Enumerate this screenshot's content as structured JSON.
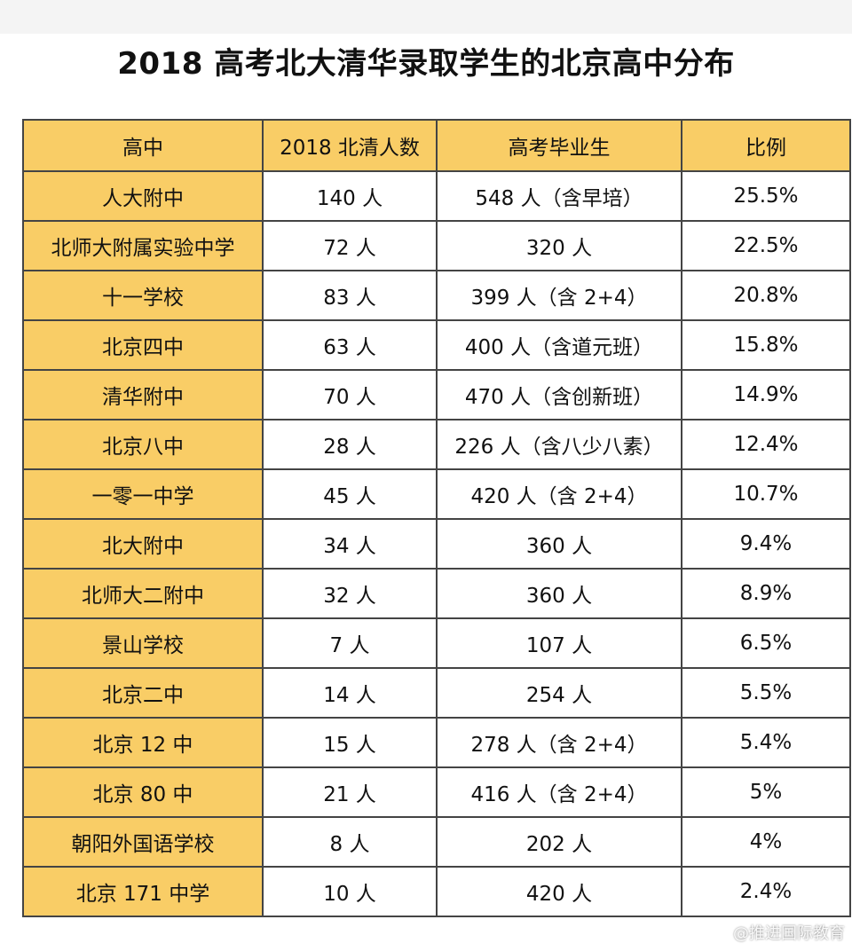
{
  "title": "2018 高考北大清华录取学生的北京高中分布",
  "table": {
    "headers": [
      "高中",
      "2018 北清人数",
      "高考毕业生",
      "比例"
    ],
    "rows": [
      [
        "人大附中",
        "140 人",
        "548 人（含早培）",
        "25.5%"
      ],
      [
        "北师大附属实验中学",
        "72 人",
        "320 人",
        "22.5%"
      ],
      [
        "十一学校",
        "83 人",
        "399 人（含 2+4）",
        "20.8%"
      ],
      [
        "北京四中",
        "63 人",
        "400 人（含道元班）",
        "15.8%"
      ],
      [
        "清华附中",
        "70 人",
        "470 人（含创新班）",
        "14.9%"
      ],
      [
        "北京八中",
        "28 人",
        "226 人（含八少八素）",
        "12.4%"
      ],
      [
        "一零一中学",
        "45 人",
        "420 人（含 2+4）",
        "10.7%"
      ],
      [
        "北大附中",
        "34 人",
        "360 人",
        "9.4%"
      ],
      [
        "北师大二附中",
        "32 人",
        "360 人",
        "8.9%"
      ],
      [
        "景山学校",
        "7 人",
        "107 人",
        "6.5%"
      ],
      [
        "北京二中",
        "14 人",
        "254 人",
        "5.5%"
      ],
      [
        "北京 12 中",
        "15 人",
        "278 人（含 2+4）",
        "5.4%"
      ],
      [
        "北京 80 中",
        "21 人",
        "416 人（含 2+4）",
        "5%"
      ],
      [
        "朝阳外国语学校",
        "8 人",
        "202 人",
        "4%"
      ],
      [
        "北京 171 中学",
        "10 人",
        "420 人",
        "2.4%"
      ]
    ]
  },
  "watermark": "@推进国际教育",
  "colors": {
    "header_fill": "#f9cd66",
    "border": "#444444",
    "background": "#ffffff"
  }
}
